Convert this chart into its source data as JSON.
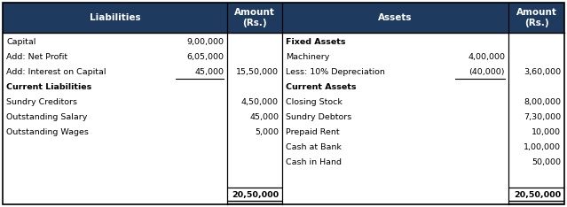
{
  "header_bg": "#1e3a5f",
  "header_fg": "#ffffff",
  "body_bg": "#ffffff",
  "body_fg": "#000000",
  "header_liabilities": "Liabilities",
  "header_amount": "Amount\n(Rs.)",
  "header_assets": "Assets",
  "liabilities_rows": [
    {
      "label": "Capital",
      "col1": "9,00,000",
      "col2": "",
      "bold": false
    },
    {
      "label": "Add: Net Profit",
      "col1": "6,05,000",
      "col2": "",
      "bold": false
    },
    {
      "label": "Add: Interest on Capital",
      "col1": "45,000",
      "col2": "15,50,000",
      "bold": false,
      "underline_col1": true
    },
    {
      "label": "Current Liabilities",
      "col1": "",
      "col2": "",
      "bold": true
    },
    {
      "label": "Sundry Creditors",
      "col1": "",
      "col2": "4,50,000",
      "bold": false
    },
    {
      "label": "Outstanding Salary",
      "col1": "",
      "col2": "45,000",
      "bold": false
    },
    {
      "label": "Outstanding Wages",
      "col1": "",
      "col2": "5,000",
      "bold": false
    }
  ],
  "assets_rows": [
    {
      "label": "Fixed Assets",
      "col1": "",
      "col2": "",
      "bold": true
    },
    {
      "label": "Machinery",
      "col1": "4,00,000",
      "col2": "",
      "bold": false
    },
    {
      "label": "Less: 10% Depreciation",
      "col1": "(40,000)",
      "col2": "3,60,000",
      "bold": false,
      "underline_col1": true
    },
    {
      "label": "Current Assets",
      "col1": "",
      "col2": "",
      "bold": true
    },
    {
      "label": "Closing Stock",
      "col1": "",
      "col2": "8,00,000",
      "bold": false
    },
    {
      "label": "Sundry Debtors",
      "col1": "",
      "col2": "7,30,000",
      "bold": false
    },
    {
      "label": "Prepaid Rent",
      "col1": "",
      "col2": "10,000",
      "bold": false
    },
    {
      "label": "Cash at Bank",
      "col1": "",
      "col2": "1,00,000",
      "bold": false
    },
    {
      "label": "Cash in Hand",
      "col1": "",
      "col2": "50,000",
      "bold": false
    }
  ],
  "total_liabilities": "20,50,000",
  "total_assets": "20,50,000",
  "fig_width": 6.39,
  "fig_height": 2.34,
  "dpi": 100
}
